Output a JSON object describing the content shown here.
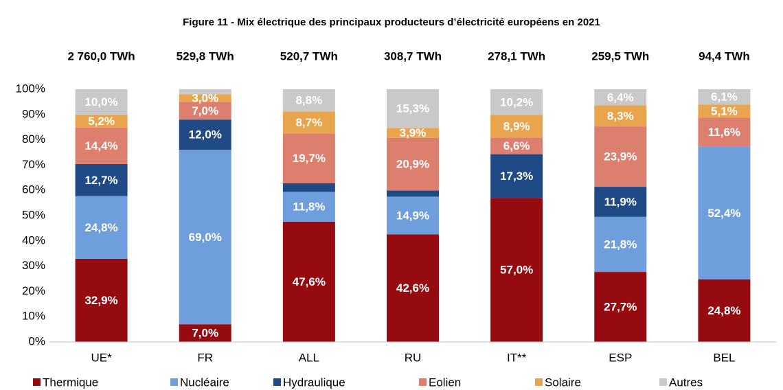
{
  "chart_data": {
    "type": "stacked_bar",
    "title": "Figure 11 - Mix électrique des principaux producteurs d’électricité européens en 2021",
    "totals": [
      "2 760,0 TWh",
      "529,8 TWh",
      "520,7 TWh",
      "308,7 TWh",
      "278,1 TWh",
      "259,5 TWh",
      "94,4 TWh"
    ],
    "categories": [
      "UE*",
      "FR",
      "ALL",
      "RU",
      "IT**",
      "ESP",
      "BEL"
    ],
    "series": [
      {
        "name": "Thermique",
        "color": "#960b10",
        "values": [
          32.9,
          7.0,
          47.6,
          42.6,
          57.0,
          27.7,
          24.8
        ],
        "value_labels": [
          "32,9%",
          "7,0%",
          "47,6%",
          "42,6%",
          "57,0%",
          "27,7%",
          "24,8%"
        ]
      },
      {
        "name": "Nucléaire",
        "color": "#6f9edc",
        "values": [
          24.8,
          69.0,
          11.8,
          14.9,
          0,
          21.8,
          52.4
        ],
        "value_labels": [
          "24,8%",
          "69,0%",
          "11,8%",
          "14,9%",
          null,
          "21,8%",
          "52,4%"
        ]
      },
      {
        "name": "Hydraulique",
        "color": "#1f4a85",
        "values": [
          12.7,
          12.0,
          3.4,
          2.4,
          17.3,
          11.9,
          0
        ],
        "value_labels": [
          "12,7%",
          "12,0%",
          null,
          null,
          "17,3%",
          "11,9%",
          null
        ]
      },
      {
        "name": "Eolien",
        "color": "#dc7f6f",
        "values": [
          14.4,
          7.0,
          19.7,
          20.9,
          6.6,
          23.9,
          11.6
        ],
        "value_labels": [
          "14,4%",
          "7,0%",
          "19,7%",
          "20,9%",
          "6,6%",
          "23,9%",
          "11,6%"
        ]
      },
      {
        "name": "Solaire",
        "color": "#e8a54d",
        "values": [
          5.2,
          3.0,
          8.7,
          3.9,
          8.9,
          8.3,
          5.1
        ],
        "value_labels": [
          "5,2%",
          "3,0%",
          "8,7%",
          "3,9%",
          "8,9%",
          "8,3%",
          "5,1%"
        ]
      },
      {
        "name": "Autres",
        "color": "#c9c9c9",
        "values": [
          10.0,
          2.0,
          8.8,
          15.3,
          10.2,
          6.4,
          6.1
        ],
        "value_labels": [
          "10,0%",
          null,
          "8,8%",
          "15,3%",
          "10,2%",
          "6,4%",
          "6,1%"
        ]
      }
    ],
    "ylim": [
      0,
      100
    ],
    "yticks": [
      {
        "value": 0,
        "label": "0%"
      },
      {
        "value": 10,
        "label": "10%"
      },
      {
        "value": 20,
        "label": "20%"
      },
      {
        "value": 30,
        "label": "30%"
      },
      {
        "value": 40,
        "label": "40%"
      },
      {
        "value": 50,
        "label": "50%"
      },
      {
        "value": 60,
        "label": "60%"
      },
      {
        "value": 70,
        "label": "70%"
      },
      {
        "value": 80,
        "label": "80%"
      },
      {
        "value": 90,
        "label": "90%"
      },
      {
        "value": 100,
        "label": "100%"
      }
    ],
    "legend": "bottom"
  }
}
